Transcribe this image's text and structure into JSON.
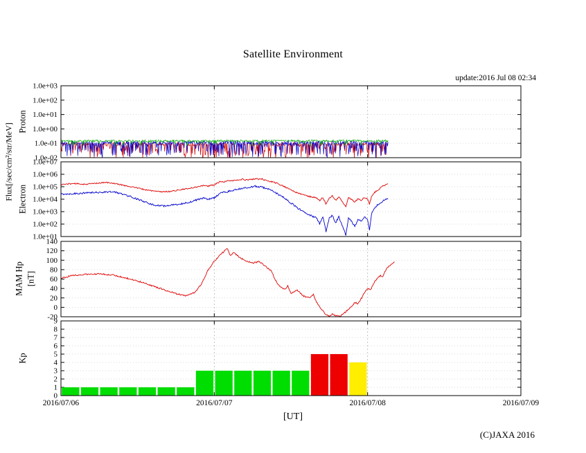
{
  "page": {
    "title": "Satellite Environment",
    "update_text": "update:2016 Jul 08 02:34",
    "x_axis_label": "[UT]",
    "copyright": "(C)JAXA 2016",
    "flux_axis_label": "Flux[/sec/cm²/str/MeV]"
  },
  "chart_data": {
    "type": "line",
    "title": "Satellite Environment",
    "legend": "none",
    "grid": "dotted major gridlines, vertical at day boundaries",
    "x": {
      "tick_labels": [
        "2016/07/06",
        "2016/07/07",
        "2016/07/08",
        "2016/07/09"
      ],
      "tick_hours": [
        0,
        24,
        48,
        72
      ],
      "range_hours": [
        0,
        72
      ],
      "gridline_hours": [
        24,
        48
      ],
      "xlabel": "[UT]"
    },
    "panels": [
      {
        "name": "proton",
        "type": "line",
        "side_label": "Proton",
        "yscale": "log",
        "ylim_log": [
          -2,
          3
        ],
        "ytick_labels": [
          "1.0e+03",
          "1.0e+02",
          "1.0e+01",
          "1.0e+00",
          "1.0e-01",
          "1.0e-02"
        ],
        "data_end_hour": 51.2,
        "series": [
          {
            "name": "proton-red",
            "color": "#cc0000",
            "baseline_log": -1.05,
            "noise_log": 0.12,
            "spike_prob": 0.35,
            "spike_depth": 1.0,
            "seed": 33
          },
          {
            "name": "proton-blue",
            "color": "#0000cc",
            "baseline_log": -0.95,
            "noise_log": 0.12,
            "spike_prob": 0.35,
            "spike_depth": 1.05,
            "seed": 22
          },
          {
            "name": "proton-green",
            "color": "#00aa00",
            "baseline_log": -0.83,
            "noise_log": 0.07,
            "spike_prob": 0.1,
            "spike_depth": 0.35,
            "seed": 11
          }
        ]
      },
      {
        "name": "electron",
        "type": "line",
        "side_label": "Electron",
        "yscale": "log",
        "ylim_log": [
          1,
          7
        ],
        "ytick_labels": [
          "1.0e+07",
          "1.0e+06",
          "1.0e+05",
          "1.0e+04",
          "1.0e+03",
          "1.0e+02",
          "1.0e+01"
        ],
        "series": [
          {
            "name": "electron-red",
            "color": "#dd0000",
            "noise_log": 0.05,
            "seed": 44,
            "width": 0.9,
            "points_log": [
              [
                0,
                5.18
              ],
              [
                1,
                5.22
              ],
              [
                2,
                5.26
              ],
              [
                3,
                5.22
              ],
              [
                4,
                5.2
              ],
              [
                5,
                5.26
              ],
              [
                6,
                5.3
              ],
              [
                7,
                5.34
              ],
              [
                8,
                5.3
              ],
              [
                9,
                5.2
              ],
              [
                10,
                5.1
              ],
              [
                11,
                5.0
              ],
              [
                12,
                4.9
              ],
              [
                13,
                4.78
              ],
              [
                14,
                4.7
              ],
              [
                15,
                4.62
              ],
              [
                16,
                4.6
              ],
              [
                17,
                4.62
              ],
              [
                18,
                4.7
              ],
              [
                19,
                4.78
              ],
              [
                20,
                4.85
              ],
              [
                21,
                4.95
              ],
              [
                22,
                5.08
              ],
              [
                22.5,
                5.12
              ],
              [
                23,
                5.05
              ],
              [
                24,
                5.15
              ],
              [
                24.5,
                5.3
              ],
              [
                25,
                5.42
              ],
              [
                25.5,
                5.38
              ],
              [
                26,
                5.45
              ],
              [
                27,
                5.5
              ],
              [
                28,
                5.55
              ],
              [
                28.5,
                5.6
              ],
              [
                29,
                5.55
              ],
              [
                30,
                5.6
              ],
              [
                30.5,
                5.65
              ],
              [
                31,
                5.6
              ],
              [
                31.5,
                5.62
              ],
              [
                32,
                5.5
              ],
              [
                33,
                5.4
              ],
              [
                34,
                5.25
              ],
              [
                35,
                5.0
              ],
              [
                36,
                4.75
              ],
              [
                37,
                4.5
              ],
              [
                38,
                4.35
              ],
              [
                39,
                4.2
              ],
              [
                40,
                4.1
              ],
              [
                40.5,
                3.9
              ],
              [
                41,
                4.15
              ],
              [
                41.5,
                3.6
              ],
              [
                42,
                4.1
              ],
              [
                42.5,
                4.25
              ],
              [
                43,
                3.9
              ],
              [
                43.5,
                4.2
              ],
              [
                44,
                3.8
              ],
              [
                44.6,
                3.4
              ],
              [
                45,
                4.15
              ],
              [
                45.5,
                4.0
              ],
              [
                46,
                3.75
              ],
              [
                46.5,
                4.05
              ],
              [
                47,
                3.9
              ],
              [
                47.5,
                4.15
              ],
              [
                48,
                4.0
              ],
              [
                48.3,
                3.6
              ],
              [
                48.6,
                4.2
              ],
              [
                49,
                4.5
              ],
              [
                49.5,
                4.7
              ],
              [
                50,
                4.9
              ],
              [
                50.5,
                5.1
              ],
              [
                51.2,
                5.22
              ]
            ]
          },
          {
            "name": "electron-blue",
            "color": "#0000cc",
            "noise_log": 0.07,
            "seed": 55,
            "width": 0.9,
            "points_log": [
              [
                0,
                4.4
              ],
              [
                2,
                4.45
              ],
              [
                4,
                4.5
              ],
              [
                6,
                4.55
              ],
              [
                8,
                4.6
              ],
              [
                9,
                4.5
              ],
              [
                10,
                4.35
              ],
              [
                11,
                4.2
              ],
              [
                12,
                4.0
              ],
              [
                13,
                3.8
              ],
              [
                14,
                3.6
              ],
              [
                15,
                3.5
              ],
              [
                16,
                3.45
              ],
              [
                17,
                3.5
              ],
              [
                18,
                3.55
              ],
              [
                19,
                3.65
              ],
              [
                20,
                3.75
              ],
              [
                21,
                3.9
              ],
              [
                22,
                4.05
              ],
              [
                22.5,
                4.1
              ],
              [
                23,
                4.0
              ],
              [
                24,
                4.1
              ],
              [
                24.5,
                4.3
              ],
              [
                25,
                4.5
              ],
              [
                26,
                4.6
              ],
              [
                27,
                4.7
              ],
              [
                28,
                4.85
              ],
              [
                29,
                4.9
              ],
              [
                30,
                5.0
              ],
              [
                30.5,
                5.05
              ],
              [
                31,
                5.0
              ],
              [
                32,
                4.9
              ],
              [
                33,
                4.7
              ],
              [
                34,
                4.4
              ],
              [
                35,
                4.1
              ],
              [
                36,
                3.7
              ],
              [
                37,
                3.3
              ],
              [
                38,
                3.0
              ],
              [
                39,
                2.7
              ],
              [
                40,
                2.5
              ],
              [
                40.5,
                2.0
              ],
              [
                41,
                2.6
              ],
              [
                41.5,
                1.4
              ],
              [
                42,
                2.5
              ],
              [
                42.5,
                2.7
              ],
              [
                43,
                2.1
              ],
              [
                43.5,
                2.6
              ],
              [
                44,
                1.9
              ],
              [
                44.6,
                1.1
              ],
              [
                45,
                2.5
              ],
              [
                45.5,
                2.2
              ],
              [
                46,
                1.8
              ],
              [
                46.5,
                2.4
              ],
              [
                47,
                2.2
              ],
              [
                47.5,
                2.6
              ],
              [
                48,
                2.4
              ],
              [
                48.3,
                1.5
              ],
              [
                48.6,
                2.8
              ],
              [
                49,
                3.2
              ],
              [
                49.5,
                3.5
              ],
              [
                50,
                3.7
              ],
              [
                50.5,
                3.9
              ],
              [
                51.2,
                4.05
              ]
            ]
          }
        ]
      },
      {
        "name": "mam-hp",
        "type": "line",
        "side_label_lines": [
          "MAM Hp",
          "[nT]"
        ],
        "yscale": "linear",
        "ylim": [
          -20,
          140
        ],
        "ytick_labels": [
          "140",
          "120",
          "100",
          "80",
          "60",
          "40",
          "20",
          "0",
          "-20"
        ],
        "series": [
          {
            "name": "hp",
            "color": "#dd0000",
            "noise": 1.5,
            "seed": 66,
            "width": 0.9,
            "points": [
              [
                0,
                62
              ],
              [
                2,
                68
              ],
              [
                4,
                70
              ],
              [
                6,
                71
              ],
              [
                8,
                69
              ],
              [
                10,
                63
              ],
              [
                12,
                56
              ],
              [
                14,
                47
              ],
              [
                16,
                38
              ],
              [
                18,
                29
              ],
              [
                19.5,
                25
              ],
              [
                21,
                32
              ],
              [
                22,
                50
              ],
              [
                23,
                78
              ],
              [
                24,
                98
              ],
              [
                25,
                112
              ],
              [
                26,
                125
              ],
              [
                26.5,
                110
              ],
              [
                27,
                117
              ],
              [
                28,
                106
              ],
              [
                29,
                98
              ],
              [
                30,
                94
              ],
              [
                31,
                97
              ],
              [
                32,
                88
              ],
              [
                33,
                76
              ],
              [
                33.5,
                60
              ],
              [
                34,
                48
              ],
              [
                35,
                38
              ],
              [
                35.5,
                45
              ],
              [
                36,
                30
              ],
              [
                37,
                36
              ],
              [
                38,
                24
              ],
              [
                39,
                20
              ],
              [
                39.5,
                28
              ],
              [
                40,
                12
              ],
              [
                40.5,
                2
              ],
              [
                41,
                -8
              ],
              [
                41.5,
                -15
              ],
              [
                42,
                -19
              ],
              [
                42.5,
                -14
              ],
              [
                43,
                -18
              ],
              [
                43.7,
                -20
              ],
              [
                44.3,
                -12
              ],
              [
                45,
                -5
              ],
              [
                45.5,
                2
              ],
              [
                46,
                10
              ],
              [
                46.5,
                8
              ],
              [
                47,
                18
              ],
              [
                47.5,
                30
              ],
              [
                48,
                40
              ],
              [
                48.5,
                38
              ],
              [
                49,
                52
              ],
              [
                49.5,
                60
              ],
              [
                50,
                68
              ],
              [
                50.3,
                64
              ],
              [
                50.7,
                75
              ],
              [
                51,
                82
              ],
              [
                51.4,
                88
              ],
              [
                51.8,
                92
              ],
              [
                52.2,
                97
              ]
            ]
          }
        ]
      },
      {
        "name": "kp",
        "type": "bar",
        "side_label": "Kp",
        "yscale": "linear",
        "ylim": [
          0,
          9
        ],
        "ytick_labels": [
          "9",
          "8",
          "7",
          "6",
          "5",
          "4",
          "3",
          "2",
          "1",
          "0"
        ],
        "bar_interval_hours": 3,
        "color_rule": "green Kp<4, yellow Kp=4, red Kp>=5",
        "bars": [
          {
            "start_hour": 0,
            "value": 1,
            "color": "#00dd00"
          },
          {
            "start_hour": 3,
            "value": 1,
            "color": "#00dd00"
          },
          {
            "start_hour": 6,
            "value": 1,
            "color": "#00dd00"
          },
          {
            "start_hour": 9,
            "value": 1,
            "color": "#00dd00"
          },
          {
            "start_hour": 12,
            "value": 1,
            "color": "#00dd00"
          },
          {
            "start_hour": 15,
            "value": 1,
            "color": "#00dd00"
          },
          {
            "start_hour": 18,
            "value": 1,
            "color": "#00dd00"
          },
          {
            "start_hour": 21,
            "value": 3,
            "color": "#00dd00"
          },
          {
            "start_hour": 24,
            "value": 3,
            "color": "#00dd00"
          },
          {
            "start_hour": 27,
            "value": 3,
            "color": "#00dd00"
          },
          {
            "start_hour": 30,
            "value": 3,
            "color": "#00dd00"
          },
          {
            "start_hour": 33,
            "value": 3,
            "color": "#00dd00"
          },
          {
            "start_hour": 36,
            "value": 3,
            "color": "#00dd00"
          },
          {
            "start_hour": 39,
            "value": 5,
            "color": "#ee0000"
          },
          {
            "start_hour": 42,
            "value": 5,
            "color": "#ee0000"
          },
          {
            "start_hour": 45,
            "value": 4,
            "color": "#ffee00"
          }
        ]
      }
    ]
  }
}
